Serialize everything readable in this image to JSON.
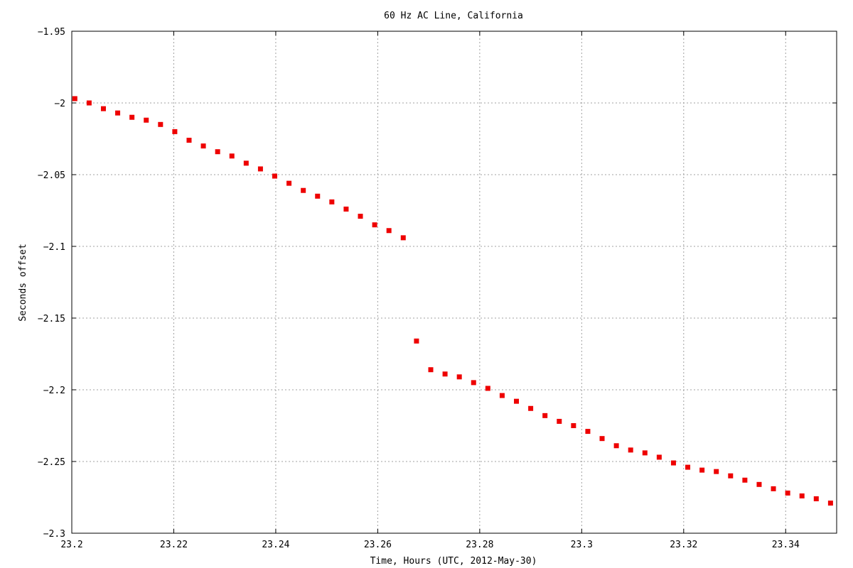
{
  "chart_data": {
    "type": "scatter",
    "title": "60 Hz AC Line, California",
    "xlabel": "Time, Hours (UTC, 2012-May-30)",
    "ylabel": "Seconds offset",
    "xlim": [
      23.2,
      23.35
    ],
    "ylim": [
      -2.3,
      -1.95
    ],
    "xticks": [
      "23.2",
      "23.22",
      "23.24",
      "23.26",
      "23.28",
      "23.3",
      "23.32",
      "23.34"
    ],
    "xtick_values": [
      23.2,
      23.22,
      23.24,
      23.26,
      23.28,
      23.3,
      23.32,
      23.34
    ],
    "yticks": [
      "-1.95",
      "-2",
      "-2.05",
      "-2.1",
      "-2.15",
      "-2.2",
      "-2.25",
      "-2.3"
    ],
    "ytick_values": [
      -1.95,
      -2.0,
      -2.05,
      -2.1,
      -2.15,
      -2.2,
      -2.25,
      -2.3
    ],
    "grid": true,
    "marker_color": "#ee0000",
    "series": [
      {
        "x": [
          23.2006,
          23.2034,
          23.2062,
          23.209,
          23.2118,
          23.2146,
          23.2174,
          23.2202,
          23.223,
          23.2258,
          23.2286,
          23.2314,
          23.2342,
          23.237,
          23.2398,
          23.2426,
          23.2454,
          23.2482,
          23.251,
          23.2538,
          23.2566,
          23.2594,
          23.2622,
          23.265,
          23.2676,
          23.2704,
          23.2732,
          23.276,
          23.2788,
          23.2816,
          23.2844,
          23.2872,
          23.29,
          23.2928,
          23.2956,
          23.2984,
          23.3012,
          23.304,
          23.3068,
          23.3096,
          23.3124,
          23.3152,
          23.318,
          23.3208,
          23.3236,
          23.3264,
          23.3292,
          23.332,
          23.3348,
          23.3376,
          23.3404,
          23.3432,
          23.346,
          23.3488
        ],
        "y": [
          -1.997,
          -2.0,
          -2.004,
          -2.007,
          -2.01,
          -2.012,
          -2.015,
          -2.02,
          -2.026,
          -2.03,
          -2.034,
          -2.037,
          -2.042,
          -2.046,
          -2.051,
          -2.056,
          -2.061,
          -2.065,
          -2.069,
          -2.074,
          -2.079,
          -2.085,
          -2.089,
          -2.094,
          -2.166,
          -2.186,
          -2.189,
          -2.191,
          -2.195,
          -2.199,
          -2.204,
          -2.208,
          -2.213,
          -2.218,
          -2.222,
          -2.225,
          -2.229,
          -2.234,
          -2.239,
          -2.242,
          -2.244,
          -2.247,
          -2.251,
          -2.254,
          -2.256,
          -2.257,
          -2.26,
          -2.263,
          -2.266,
          -2.269,
          -2.272,
          -2.274,
          -2.276,
          -2.279
        ]
      }
    ]
  }
}
